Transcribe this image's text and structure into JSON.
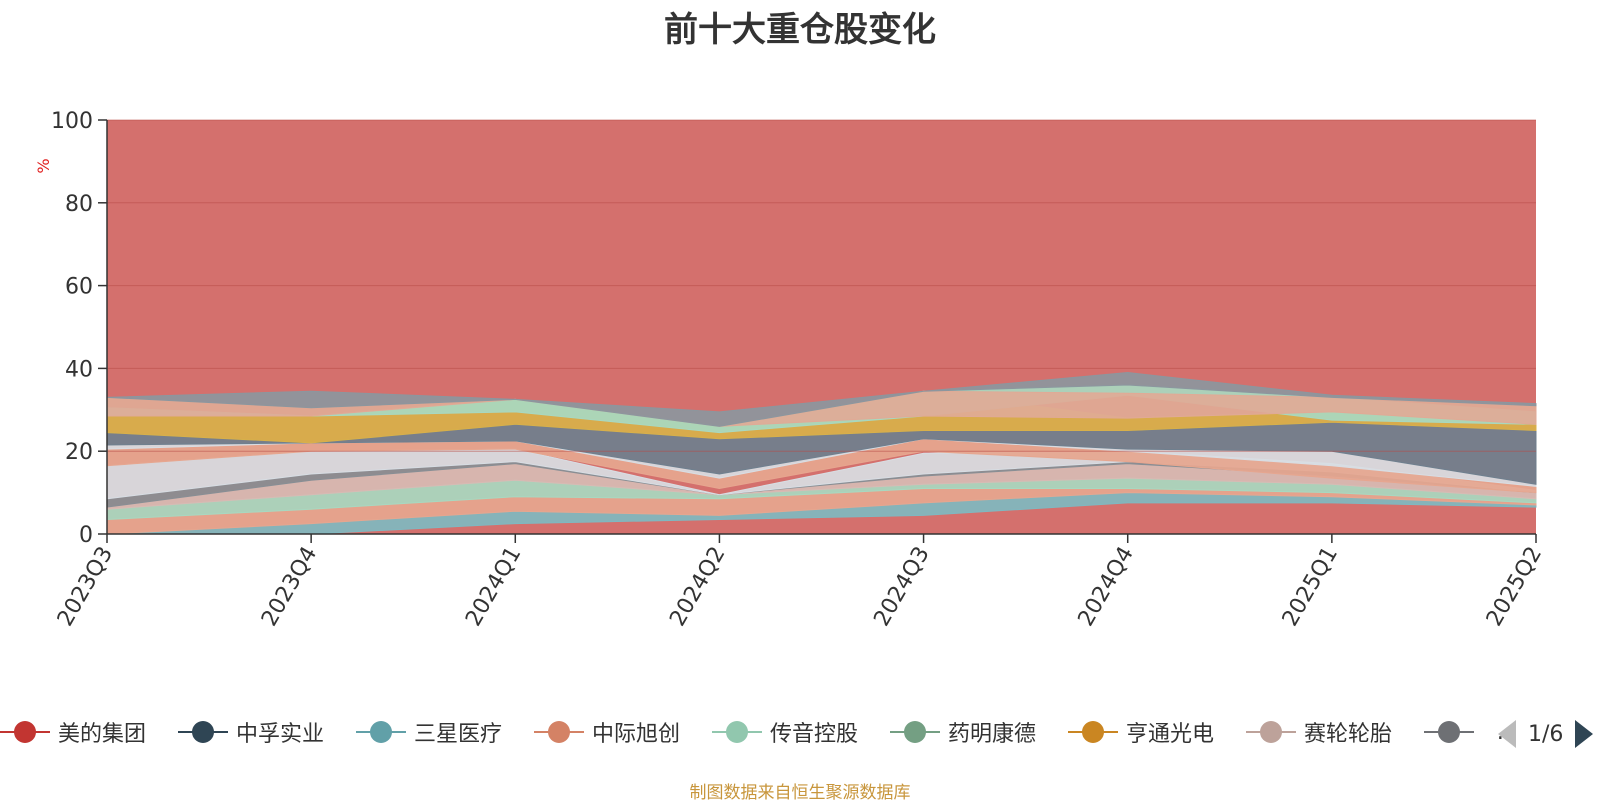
{
  "title": "前十大重仓股变化",
  "source_note": "制图数据来自恒生聚源数据库",
  "pager": {
    "text": "1/6"
  },
  "legend": [
    {
      "name": "美的集团",
      "color": "#c23531"
    },
    {
      "name": "中孚实业",
      "color": "#2f4554"
    },
    {
      "name": "三星医疗",
      "color": "#61a0a8"
    },
    {
      "name": "中际旭创",
      "color": "#d48265"
    },
    {
      "name": "传音控股",
      "color": "#91c7ae"
    },
    {
      "name": "药明康德",
      "color": "#749f83"
    },
    {
      "name": "亨通光电",
      "color": "#ca8622"
    },
    {
      "name": "赛轮轮胎",
      "color": "#bda29a"
    },
    {
      "name": "…",
      "color": "#6e7074"
    }
  ],
  "chart_data": {
    "type": "area",
    "stacked": true,
    "ylabel": "%",
    "ylim": [
      0,
      100
    ],
    "yticks": [
      0,
      20,
      40,
      60,
      80,
      100
    ],
    "categories": [
      "2023Q3",
      "2023Q4",
      "2024Q1",
      "2024Q2",
      "2024Q3",
      "2024Q4",
      "2025Q1",
      "2025Q2"
    ],
    "background_area_color": "#d4706d",
    "grid": true,
    "layers": [
      {
        "color": "#7fb8c0",
        "bottom": [
          0,
          0,
          2.5,
          3.5,
          4.5,
          7.5,
          7.5,
          6.5
        ],
        "top": [
          0,
          2.5,
          5.5,
          4.5,
          7.5,
          10,
          9,
          7
        ]
      },
      {
        "color": "#e6a68f",
        "bottom": [
          0,
          2.5,
          5.5,
          4.5,
          7.5,
          10,
          9,
          7
        ],
        "top": [
          3.5,
          6,
          9,
          8.5,
          11,
          11,
          10,
          7.5
        ]
      },
      {
        "color": "#a8d8c0",
        "bottom": [
          3.5,
          6,
          9,
          8.5,
          11,
          11,
          10,
          7.5
        ],
        "top": [
          6,
          9.5,
          13,
          9.5,
          12,
          13.5,
          12,
          8.5
        ]
      },
      {
        "color": "#d7bbb4",
        "bottom": [
          6,
          9.5,
          13,
          9.5,
          12,
          13.5,
          12,
          8.5
        ],
        "top": [
          6.5,
          13,
          17,
          9.5,
          14,
          17,
          14,
          10
        ]
      },
      {
        "color": "#888e94",
        "bottom": [
          6.5,
          13,
          17,
          9.5,
          14,
          17,
          14,
          10
        ],
        "top": [
          8.5,
          14.5,
          17.5,
          9.5,
          14.5,
          17.5,
          15,
          10
        ]
      },
      {
        "color": "#d8dde3",
        "bottom": [
          8.5,
          14.5,
          17.5,
          9.5,
          14.5,
          17.5,
          15,
          10
        ],
        "top": [
          16.5,
          20,
          20.5,
          9.5,
          19.5,
          20,
          17,
          10.5
        ]
      },
      {
        "color": "#e6a68f",
        "bottom": [
          16.5,
          20,
          20.5,
          11,
          20,
          17.5,
          13.5,
          10
        ],
        "top": [
          20.5,
          22,
          22.5,
          13.5,
          23,
          20,
          16.5,
          11.5
        ]
      },
      {
        "color": "#d8dde3",
        "bottom": [
          20.5,
          22,
          22.5,
          13.5,
          23,
          20,
          16.5,
          11.5
        ],
        "top": [
          21.5,
          22,
          22.5,
          14.5,
          23,
          20.5,
          20,
          12
        ]
      },
      {
        "color": "#6f7f8e",
        "bottom": [
          21.5,
          22,
          22.5,
          14.5,
          23,
          20.5,
          20,
          12
        ],
        "top": [
          24.5,
          22,
          26.5,
          23,
          25,
          25,
          27,
          25
        ]
      },
      {
        "color": "#d8b04a",
        "bottom": [
          24.5,
          22,
          26.5,
          23,
          25,
          25,
          27,
          25
        ],
        "top": [
          28.5,
          28.5,
          32.5,
          26,
          34.5,
          28,
          29.5,
          26.5
        ]
      },
      {
        "color": "#a8d8c0",
        "bottom": [
          28.5,
          28.5,
          29.5,
          24.5,
          28.5,
          33.5,
          27.5,
          26.5
        ],
        "top": [
          30.5,
          28.5,
          32.5,
          26,
          34.5,
          36,
          33,
          29.5
        ]
      },
      {
        "color": "#e0aa96",
        "bottom": [
          28.5,
          28.5,
          32.5,
          26,
          28.5,
          28,
          29.5,
          26.5
        ],
        "top": [
          33,
          30.5,
          32.5,
          26,
          34.5,
          34,
          33,
          31
        ]
      },
      {
        "color": "#8c969e",
        "bottom": [
          33,
          30.5,
          32.5,
          26,
          34.5,
          36,
          33,
          31
        ],
        "top": [
          33,
          34.5,
          32.5,
          29.5,
          34.5,
          39,
          33.5,
          31.5
        ]
      }
    ]
  }
}
